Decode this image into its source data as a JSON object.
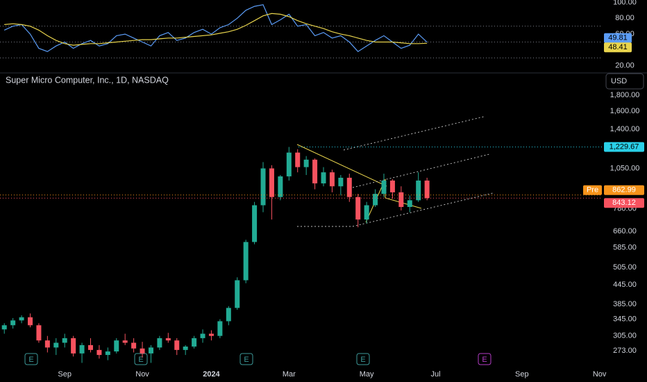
{
  "chart_data": [
    {
      "type": "line",
      "ylim": [
        11,
        103
      ],
      "yticks": [
        {
          "value": 100,
          "label": "100.00"
        },
        {
          "value": 80,
          "label": "80.00"
        },
        {
          "value": 60,
          "label": "60.00"
        },
        {
          "value": 20,
          "label": "20.00"
        }
      ],
      "levels": [
        70,
        50,
        30
      ],
      "series": [
        {
          "color": "#5b9cf6",
          "values": [
            65,
            70,
            72,
            60,
            42,
            38,
            45,
            50,
            42,
            48,
            52,
            45,
            48,
            58,
            60,
            55,
            50,
            45,
            58,
            62,
            52,
            55,
            62,
            66,
            60,
            68,
            72,
            80,
            90,
            95,
            97,
            72,
            78,
            85,
            70,
            72,
            58,
            62,
            55,
            58,
            50,
            38,
            45,
            52,
            58,
            50,
            42,
            46,
            60,
            49.81
          ]
        },
        {
          "color": "#e8d44d",
          "values": [
            72,
            73,
            72,
            70,
            65,
            58,
            52,
            48,
            46,
            47,
            48,
            48,
            49,
            50,
            51,
            52,
            53,
            53,
            54,
            55,
            55,
            56,
            57,
            58,
            59,
            61,
            63,
            66,
            71,
            77,
            83,
            86,
            85,
            82,
            77,
            73,
            70,
            67,
            63,
            60,
            58,
            55,
            52,
            50,
            50,
            50,
            49,
            48,
            48,
            48.41
          ]
        }
      ]
    },
    {
      "type": "candlestick",
      "title": "Super Micro Computer, Inc., 1D, NASDAQ",
      "currency": "USD",
      "log_scale": true,
      "ylim": [
        243,
        2124
      ],
      "up_color": "#22ab94",
      "down_color": "#f7525f",
      "yticks": [
        {
          "value": 1800,
          "label": "1,800.00"
        },
        {
          "value": 1600,
          "label": "1,600.00"
        },
        {
          "value": 1400,
          "label": "1,400.00"
        },
        {
          "value": 1050,
          "label": "1,050.00"
        },
        {
          "value": 780,
          "label": "780.00"
        },
        {
          "value": 660,
          "label": "660.00"
        },
        {
          "value": 585,
          "label": "585.00"
        },
        {
          "value": 505,
          "label": "505.00"
        },
        {
          "value": 445,
          "label": "445.00"
        },
        {
          "value": 385,
          "label": "385.00"
        },
        {
          "value": 345,
          "label": "345.00"
        },
        {
          "value": 305,
          "label": "305.00"
        },
        {
          "value": 273,
          "label": "273.00"
        }
      ],
      "categories": [
        null,
        null,
        null,
        null,
        null,
        null,
        null,
        "Sep",
        null,
        null,
        null,
        null,
        null,
        null,
        null,
        null,
        "Nov",
        null,
        null,
        null,
        null,
        null,
        null,
        null,
        "2024",
        null,
        null,
        null,
        null,
        null,
        null,
        null,
        null,
        "Mar",
        null,
        null,
        null,
        null,
        null,
        null,
        null,
        null,
        "May",
        null,
        null,
        null,
        null,
        null,
        null,
        null,
        "Jul",
        null,
        null,
        null,
        null,
        null,
        null,
        null,
        null,
        null,
        "Sep",
        null,
        null,
        null,
        null,
        null,
        null,
        null,
        null,
        "Nov",
        null,
        null,
        null,
        null,
        null
      ],
      "open": [
        320,
        330,
        342,
        350,
        330,
        295,
        280,
        290,
        300,
        268,
        285,
        275,
        265,
        272,
        295,
        290,
        278,
        268,
        280,
        300,
        295,
        275,
        282,
        300,
        310,
        305,
        340,
        375,
        460,
        610,
        800,
        1050,
        850,
        990,
        1180,
        1060,
        1120,
        940,
        1020,
        920,
        980,
        850,
        720,
        800,
        870,
        960,
        880,
        790,
        830,
        960,
        null,
        null,
        null,
        null,
        null,
        null,
        null,
        null,
        null,
        null,
        null,
        null,
        null,
        null,
        null,
        null,
        null,
        null,
        null,
        null,
        null,
        null,
        null,
        null,
        null
      ],
      "high": [
        335,
        348,
        355,
        360,
        335,
        305,
        300,
        310,
        305,
        290,
        300,
        285,
        280,
        300,
        310,
        300,
        292,
        285,
        305,
        312,
        300,
        285,
        305,
        320,
        318,
        345,
        380,
        470,
        620,
        820,
        1100,
        1075,
        1000,
        1230,
        1210,
        1150,
        1130,
        1060,
        1040,
        1000,
        1010,
        870,
        820,
        900,
        1010,
        970,
        920,
        860,
        1020,
        980,
        null,
        null,
        null,
        null,
        null,
        null,
        null,
        null,
        null,
        null,
        null,
        null,
        null,
        null,
        null,
        null,
        null,
        null,
        null,
        null,
        null,
        null,
        null,
        null,
        null
      ],
      "low": [
        310,
        322,
        335,
        325,
        290,
        270,
        265,
        280,
        262,
        250,
        270,
        258,
        255,
        268,
        285,
        270,
        260,
        250,
        275,
        290,
        265,
        265,
        278,
        290,
        295,
        300,
        330,
        370,
        450,
        600,
        760,
        720,
        830,
        960,
        1020,
        1000,
        900,
        920,
        880,
        860,
        820,
        680,
        700,
        790,
        850,
        840,
        770,
        760,
        820,
        830,
        null,
        null,
        null,
        null,
        null,
        null,
        null,
        null,
        null,
        null,
        null,
        null,
        null,
        null,
        null,
        null,
        null,
        null,
        null,
        null,
        null,
        null,
        null,
        null,
        null
      ],
      "close": [
        330,
        342,
        350,
        330,
        295,
        280,
        290,
        300,
        268,
        285,
        275,
        265,
        272,
        295,
        290,
        278,
        268,
        280,
        300,
        295,
        275,
        282,
        300,
        310,
        305,
        340,
        375,
        460,
        610,
        800,
        1050,
        850,
        990,
        1180,
        1060,
        1120,
        940,
        1020,
        920,
        980,
        850,
        720,
        800,
        870,
        960,
        880,
        790,
        830,
        960,
        843.12,
        null,
        null,
        null,
        null,
        null,
        null,
        null,
        null,
        null,
        null,
        null,
        null,
        null,
        null,
        null,
        null,
        null,
        null,
        null,
        null,
        null,
        null,
        null,
        null,
        null
      ],
      "price_labels": [
        {
          "value": 1229.67,
          "label": "1,229.67",
          "color": "#2ad0e8"
        },
        {
          "value": 862.99,
          "label": "862.99",
          "color": "#f7931a",
          "tag": "Pre"
        },
        {
          "value": 843.12,
          "label": "843.12",
          "color": "#f7525f"
        }
      ],
      "annotations": [
        "E",
        "E",
        "E",
        "E",
        "E"
      ]
    }
  ]
}
